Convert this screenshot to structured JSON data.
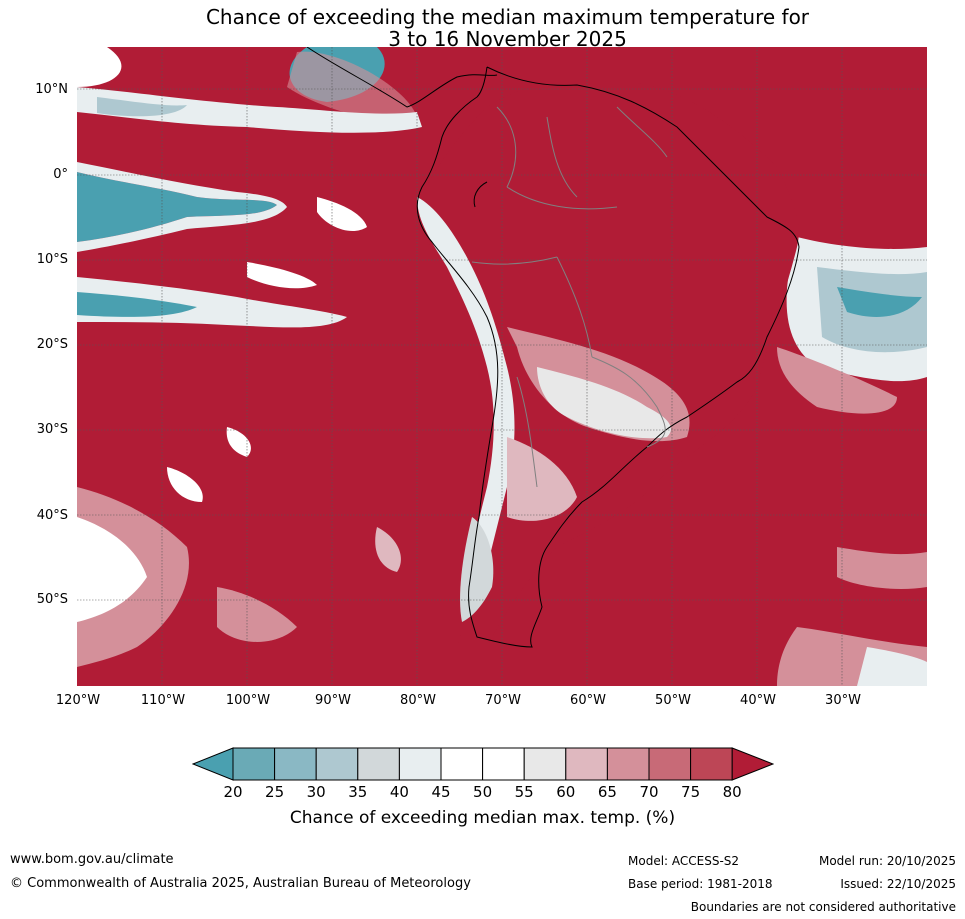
{
  "title": {
    "line1": "Chance of exceeding the median maximum temperature for",
    "line2": "3 to 16 November 2025"
  },
  "map": {
    "region": "South America",
    "lat_labels": [
      "10°N",
      "0°",
      "10°S",
      "20°S",
      "30°S",
      "40°S",
      "50°S"
    ],
    "lon_labels": [
      "120°W",
      "110°W",
      "100°W",
      "90°W",
      "80°W",
      "70°W",
      "60°W",
      "50°W",
      "40°W",
      "30°W"
    ],
    "colors": {
      "ocean_dominant": "#b11c36",
      "land_dominant": "#b11c36",
      "coast_line": "#000000",
      "border_line": "#808080",
      "grid_line": "#555555"
    }
  },
  "colorbar": {
    "ticks": [
      "20",
      "25",
      "30",
      "35",
      "40",
      "45",
      "50",
      "55",
      "60",
      "65",
      "70",
      "75",
      "80"
    ],
    "colors": [
      "#4aa0b0",
      "#6aaab6",
      "#8ab8c4",
      "#aec8d0",
      "#d2d8da",
      "#e8eef0",
      "#ffffff",
      "#ffffff",
      "#e8e8e8",
      "#dfb8bf",
      "#d4909a",
      "#c86a77",
      "#bd4656",
      "#b11c36"
    ],
    "label": "Chance of exceeding median max. temp. (%)"
  },
  "footer": {
    "url": "www.bom.gov.au/climate",
    "copyright": "© Commonwealth of Australia 2025, Australian Bureau of Meteorology",
    "model": "Model: ACCESS-S2",
    "base_period": "Base period: 1981-2018",
    "model_run": "Model run: 20/10/2025",
    "issued": "Issued: 22/10/2025",
    "disclaimer": "Boundaries are not considered authoritative"
  }
}
